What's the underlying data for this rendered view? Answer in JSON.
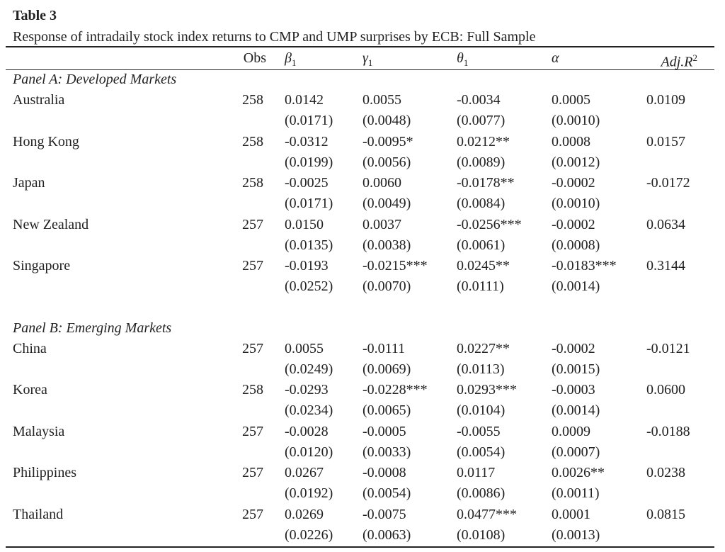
{
  "title": "Table 3",
  "caption": "Response of intradaily stock index returns to CMP and UMP surprises by ECB: Full Sample",
  "header": [
    {
      "text": "Obs"
    },
    {
      "text": "β",
      "sub": "1"
    },
    {
      "text": "γ",
      "sub": "1"
    },
    {
      "text": "θ",
      "sub": "1"
    },
    {
      "text": "α"
    },
    {
      "text": "Adj.R",
      "sup": "2"
    }
  ],
  "panels": [
    {
      "title": "Panel A: Developed Markets",
      "rows": [
        {
          "country": "Australia",
          "obs": "258",
          "coef": [
            "0.0142",
            "0.0055",
            "-0.0034",
            "0.0005"
          ],
          "se": [
            "(0.0171)",
            "(0.0048)",
            "(0.0077)",
            "(0.0010)"
          ],
          "adj_r2": "0.0109"
        },
        {
          "country": "Hong Kong",
          "obs": "258",
          "coef": [
            "-0.0312",
            "-0.0095*",
            "0.0212**",
            "0.0008"
          ],
          "se": [
            "(0.0199)",
            "(0.0056)",
            "(0.0089)",
            "(0.0012)"
          ],
          "adj_r2": "0.0157"
        },
        {
          "country": "Japan",
          "obs": "258",
          "coef": [
            "-0.0025",
            "0.0060",
            "-0.0178**",
            "-0.0002"
          ],
          "se": [
            "(0.0171)",
            "(0.0049)",
            "(0.0084)",
            "(0.0010)"
          ],
          "adj_r2": "-0.0172"
        },
        {
          "country": "New Zealand",
          "obs": "257",
          "coef": [
            "0.0150",
            "0.0037",
            "-0.0256***",
            "-0.0002"
          ],
          "se": [
            "(0.0135)",
            "(0.0038)",
            "(0.0061)",
            "(0.0008)"
          ],
          "adj_r2": "0.0634"
        },
        {
          "country": "Singapore",
          "obs": "257",
          "coef": [
            "-0.0193",
            "-0.0215***",
            "0.0245**",
            "-0.0183***"
          ],
          "se": [
            "(0.0252)",
            "(0.0070)",
            "(0.0111)",
            "(0.0014)"
          ],
          "adj_r2": "0.3144"
        }
      ]
    },
    {
      "title": "Panel B: Emerging Markets",
      "rows": [
        {
          "country": "China",
          "obs": "257",
          "coef": [
            "0.0055",
            "-0.0111",
            "0.0227**",
            "-0.0002"
          ],
          "se": [
            "(0.0249)",
            "(0.0069)",
            "(0.0113)",
            "(0.0015)"
          ],
          "adj_r2": "-0.0121"
        },
        {
          "country": "Korea",
          "obs": "258",
          "coef": [
            "-0.0293",
            "-0.0228***",
            "0.0293***",
            "-0.0003"
          ],
          "se": [
            "(0.0234)",
            "(0.0065)",
            "(0.0104)",
            "(0.0014)"
          ],
          "adj_r2": "0.0600"
        },
        {
          "country": "Malaysia",
          "obs": "257",
          "coef": [
            "-0.0028",
            "-0.0005",
            "-0.0055",
            "0.0009"
          ],
          "se": [
            "(0.0120)",
            "(0.0033)",
            "(0.0054)",
            "(0.0007)"
          ],
          "adj_r2": "-0.0188"
        },
        {
          "country": "Philippines",
          "obs": "257",
          "coef": [
            "0.0267",
            "-0.0008",
            "0.0117",
            "0.0026**"
          ],
          "se": [
            "(0.0192)",
            "(0.0054)",
            "(0.0086)",
            "(0.0011)"
          ],
          "adj_r2": "0.0238"
        },
        {
          "country": "Thailand",
          "obs": "257",
          "coef": [
            "0.0269",
            "-0.0075",
            "0.0477***",
            "0.0001"
          ],
          "se": [
            "(0.0226)",
            "(0.0063)",
            "(0.0108)",
            "(0.0013)"
          ],
          "adj_r2": "0.0815"
        }
      ]
    }
  ]
}
